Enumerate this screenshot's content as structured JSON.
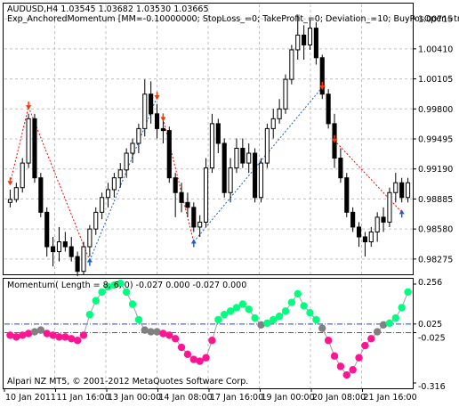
{
  "chart_data": [
    {
      "type": "candlestick",
      "symbol_line": "AUDUSD,H4  1.03545 1.03682 1.03530 1.03665",
      "expert_line": "Exp_AnchoredMomentum [MM=-0.10000000; StopLoss_=0; TakeProfit_=0; Deviation_=10; BuyPosOpen=tr",
      "y_ticks": [
        "1.00715",
        "1.00410",
        "1.00105",
        "0.99800",
        "0.99495",
        "0.99190",
        "0.98885",
        "0.98580",
        "0.98275"
      ],
      "ylim": [
        0.9812,
        1.0087
      ],
      "candles": [
        [
          0.9885,
          0.9898,
          0.988,
          0.9888
        ],
        [
          0.9888,
          0.9905,
          0.9885,
          0.99
        ],
        [
          0.99,
          0.993,
          0.9895,
          0.9925
        ],
        [
          0.9925,
          0.9975,
          0.992,
          0.997
        ],
        [
          0.997,
          0.9975,
          0.9905,
          0.991
        ],
        [
          0.991,
          0.9915,
          0.987,
          0.9875
        ],
        [
          0.9875,
          0.988,
          0.983,
          0.984
        ],
        [
          0.984,
          0.985,
          0.982,
          0.9835
        ],
        [
          0.9835,
          0.986,
          0.9825,
          0.9845
        ],
        [
          0.9845,
          0.9855,
          0.9835,
          0.984
        ],
        [
          0.984,
          0.985,
          0.9825,
          0.983
        ],
        [
          0.983,
          0.9835,
          0.981,
          0.9815
        ],
        [
          0.9815,
          0.9845,
          0.9812,
          0.984
        ],
        [
          0.984,
          0.9862,
          0.983,
          0.9858
        ],
        [
          0.9858,
          0.988,
          0.9852,
          0.9875
        ],
        [
          0.9875,
          0.9895,
          0.9868,
          0.989
        ],
        [
          0.989,
          0.9905,
          0.988,
          0.9898
        ],
        [
          0.9898,
          0.9915,
          0.989,
          0.991
        ],
        [
          0.991,
          0.9925,
          0.99,
          0.9918
        ],
        [
          0.9918,
          0.994,
          0.991,
          0.9935
        ],
        [
          0.9935,
          0.995,
          0.9925,
          0.9945
        ],
        [
          0.9945,
          0.9965,
          0.9935,
          0.996
        ],
        [
          0.996,
          1.001,
          0.9952,
          0.9995
        ],
        [
          0.9995,
          1.0008,
          0.9965,
          0.9975
        ],
        [
          0.9975,
          0.9985,
          0.995,
          0.996
        ],
        [
          0.996,
          0.9975,
          0.9945,
          0.9958
        ],
        [
          0.9958,
          0.9962,
          0.9905,
          0.991
        ],
        [
          0.991,
          0.9915,
          0.987,
          0.9895
        ],
        [
          0.9895,
          0.9905,
          0.9875,
          0.9885
        ],
        [
          0.9885,
          0.9895,
          0.987,
          0.988
        ],
        [
          0.988,
          0.9885,
          0.9855,
          0.986
        ],
        [
          0.986,
          0.9872,
          0.985,
          0.9865
        ],
        [
          0.9865,
          0.993,
          0.986,
          0.992
        ],
        [
          0.992,
          0.9975,
          0.9915,
          0.9965
        ],
        [
          0.9965,
          0.997,
          0.9935,
          0.9945
        ],
        [
          0.9945,
          0.995,
          0.989,
          0.9895
        ],
        [
          0.9895,
          0.993,
          0.9885,
          0.992
        ],
        [
          0.992,
          0.995,
          0.9915,
          0.994
        ],
        [
          0.994,
          0.995,
          0.992,
          0.9925
        ],
        [
          0.9925,
          0.9945,
          0.9915,
          0.9935
        ],
        [
          0.9935,
          0.994,
          0.9885,
          0.989
        ],
        [
          0.989,
          0.993,
          0.9885,
          0.9925
        ],
        [
          0.9925,
          0.9965,
          0.992,
          0.996
        ],
        [
          0.996,
          0.998,
          0.995,
          0.997
        ],
        [
          0.997,
          0.999,
          0.9965,
          0.998
        ],
        [
          0.998,
          1.0015,
          0.9975,
          1.001
        ],
        [
          1.001,
          1.0045,
          1.0005,
          1.004
        ],
        [
          1.004,
          1.0075,
          1.003,
          1.0055
        ],
        [
          1.0055,
          1.0065,
          1.003,
          1.0045
        ],
        [
          1.0045,
          1.007,
          1.004,
          1.0062
        ],
        [
          1.0062,
          1.0068,
          1.0025,
          1.0032
        ],
        [
          1.0032,
          1.0035,
          0.999,
          0.9995
        ],
        [
          0.9995,
          1.0,
          0.996,
          0.9965
        ],
        [
          0.9965,
          0.9975,
          0.992,
          0.993
        ],
        [
          0.993,
          0.994,
          0.9905,
          0.991
        ],
        [
          0.991,
          0.9915,
          0.987,
          0.9875
        ],
        [
          0.9875,
          0.988,
          0.9855,
          0.986
        ],
        [
          0.986,
          0.9865,
          0.984,
          0.985
        ],
        [
          0.985,
          0.9855,
          0.983,
          0.9845
        ],
        [
          0.9845,
          0.986,
          0.984,
          0.9855
        ],
        [
          0.9855,
          0.9875,
          0.9845,
          0.987
        ],
        [
          0.987,
          0.988,
          0.9855,
          0.9865
        ],
        [
          0.9865,
          0.99,
          0.986,
          0.9895
        ],
        [
          0.9895,
          0.9915,
          0.9885,
          0.9905
        ],
        [
          0.9905,
          0.991,
          0.9885,
          0.989
        ],
        [
          0.989,
          0.991,
          0.9885,
          0.9905
        ]
      ],
      "arrows": [
        {
          "i": 0,
          "dir": "sell",
          "price": 0.9905
        },
        {
          "i": 3,
          "dir": "sell",
          "price": 0.9982
        },
        {
          "i": 13,
          "dir": "buy",
          "price": 0.9826
        },
        {
          "i": 24,
          "dir": "sell",
          "price": 0.9992
        },
        {
          "i": 25,
          "dir": "sell",
          "price": 0.997
        },
        {
          "i": 30,
          "dir": "buy",
          "price": 0.9845
        },
        {
          "i": 51,
          "dir": "sell",
          "price": 1.0002
        },
        {
          "i": 53,
          "dir": "sell",
          "price": 0.9948
        },
        {
          "i": 64,
          "dir": "buy",
          "price": 0.9875
        }
      ],
      "trade_lines": [
        {
          "from": [
            0,
            0.9905
          ],
          "to": [
            3,
            0.9982
          ],
          "color": "#ff0000"
        },
        {
          "from": [
            3,
            0.9982
          ],
          "to": [
            13,
            0.9826
          ],
          "color": "#ff0000"
        },
        {
          "from": [
            13,
            0.9826
          ],
          "to": [
            24,
            0.9992
          ],
          "color": "#1e5fc8"
        },
        {
          "from": [
            25,
            0.997
          ],
          "to": [
            30,
            0.9845
          ],
          "color": "#ff0000"
        },
        {
          "from": [
            30,
            0.9845
          ],
          "to": [
            51,
            1.0002
          ],
          "color": "#1e5fc8"
        },
        {
          "from": [
            53,
            0.9948
          ],
          "to": [
            64,
            0.9875
          ],
          "color": "#ff0000"
        }
      ],
      "colors": {
        "up_candle": "#ffffff",
        "down_candle": "#000000",
        "sell_arrow": "#ff3300",
        "buy_arrow": "#1e5fc8"
      }
    },
    {
      "type": "scatter",
      "title": "Momentum( Length = 8, 6, 0) -0.027 0.000 -0.027 0.000",
      "y_ticks": [
        "0.256",
        "0.025",
        "-0.025",
        "-0.316"
      ],
      "ylim": [
        -0.316,
        0.256
      ],
      "level_up": 0.025,
      "level_down": -0.025,
      "values": [
        -0.04,
        -0.05,
        -0.04,
        -0.03,
        -0.02,
        -0.01,
        -0.03,
        -0.04,
        -0.05,
        -0.05,
        -0.06,
        -0.07,
        -0.04,
        0.08,
        0.16,
        0.21,
        0.24,
        0.25,
        0.26,
        0.21,
        0.14,
        0.05,
        -0.01,
        -0.02,
        -0.02,
        -0.03,
        -0.04,
        -0.06,
        -0.11,
        -0.15,
        -0.18,
        -0.19,
        -0.17,
        -0.07,
        0.05,
        0.08,
        0.1,
        0.12,
        0.14,
        0.11,
        0.06,
        0.02,
        0.03,
        0.05,
        0.07,
        0.1,
        0.15,
        0.2,
        0.13,
        0.09,
        0.05,
        0.0,
        -0.07,
        -0.16,
        -0.22,
        -0.27,
        -0.24,
        -0.17,
        -0.1,
        -0.06,
        -0.02,
        0.02,
        0.03,
        0.06,
        0.12,
        0.21
      ],
      "colors": {
        "above": "#00ff7f",
        "neutral": "#808080",
        "below": "#ff1493",
        "line": "#a0a0a0"
      }
    }
  ],
  "footer_text": "Alpari NZ MT5, © 2001-2012 MetaQuotes Software Corp.",
  "time_axis": [
    "10 Jan 2011",
    "11 Jan 16:00",
    "13 Jan 00:00",
    "14 Jan 08:00",
    "17 Jan 16:00",
    "19 Jan 00:00",
    "20 Jan 08:00",
    "21 Jan 16:00"
  ]
}
